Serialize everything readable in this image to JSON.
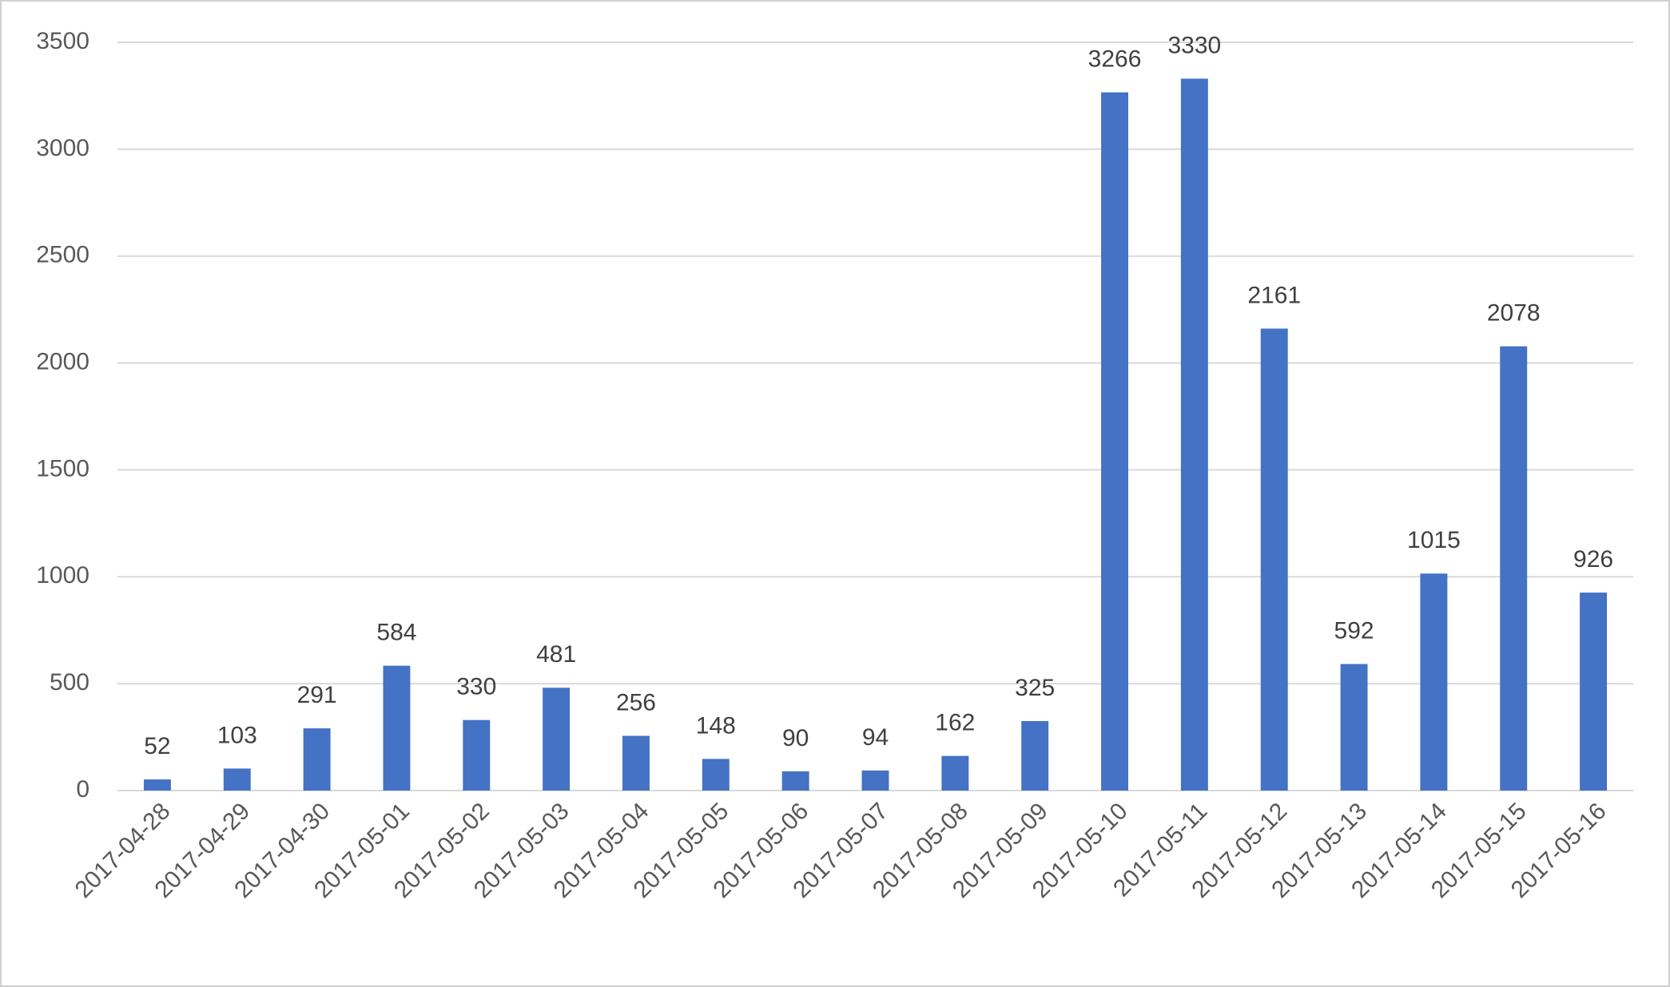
{
  "chart_data": {
    "type": "bar",
    "categories": [
      "2017-04-28",
      "2017-04-29",
      "2017-04-30",
      "2017-05-01",
      "2017-05-02",
      "2017-05-03",
      "2017-05-04",
      "2017-05-05",
      "2017-05-06",
      "2017-05-07",
      "2017-05-08",
      "2017-05-09",
      "2017-05-10",
      "2017-05-11",
      "2017-05-12",
      "2017-05-13",
      "2017-05-14",
      "2017-05-15",
      "2017-05-16"
    ],
    "values": [
      52,
      103,
      291,
      584,
      330,
      481,
      256,
      148,
      90,
      94,
      162,
      325,
      3266,
      3330,
      2161,
      592,
      1015,
      2078,
      926
    ],
    "color": "#4472c4",
    "ylim": [
      0,
      3500
    ],
    "yticks": [
      0,
      500,
      1000,
      1500,
      2000,
      2500,
      3000,
      3500
    ],
    "grid": true
  }
}
